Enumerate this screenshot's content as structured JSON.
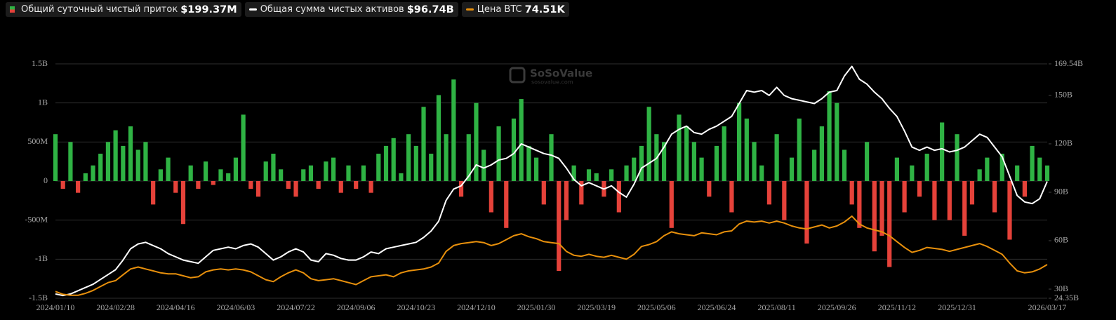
{
  "chart_data": {
    "type": "bar-line",
    "watermark": {
      "name": "SoSoValue",
      "url": "sosovalue.com"
    },
    "categories": [
      "2024/01/10",
      null,
      null,
      null,
      null,
      null,
      null,
      null,
      "2024/02/28",
      null,
      null,
      null,
      null,
      null,
      null,
      null,
      "2024/04/16",
      null,
      null,
      null,
      null,
      null,
      null,
      null,
      "2024/06/03",
      null,
      null,
      null,
      null,
      null,
      null,
      null,
      "2024/07/22",
      null,
      null,
      null,
      null,
      null,
      null,
      null,
      "2024/09/06",
      null,
      null,
      null,
      null,
      null,
      null,
      null,
      "2024/10/23",
      null,
      null,
      null,
      null,
      null,
      null,
      null,
      "2024/12/10",
      null,
      null,
      null,
      null,
      null,
      null,
      null,
      "2025/01/30",
      null,
      null,
      null,
      null,
      null,
      null,
      null,
      "2025/03/19",
      null,
      null,
      null,
      null,
      null,
      null,
      null,
      "2025/05/06",
      null,
      null,
      null,
      null,
      null,
      null,
      null,
      "2025/06/24",
      null,
      null,
      null,
      null,
      null,
      null,
      null,
      "2025/08/11",
      null,
      null,
      null,
      null,
      null,
      null,
      null,
      "2025/09/26",
      null,
      null,
      null,
      null,
      null,
      null,
      null,
      "2025/11/12",
      null,
      null,
      null,
      null,
      null,
      null,
      null,
      "2025/12/31",
      null,
      null,
      null,
      null,
      null,
      null,
      null,
      null,
      null,
      null,
      null,
      "2026/03/17"
    ],
    "ylim": [
      -1500,
      1500
    ],
    "yticks": [
      {
        "value": -1500,
        "label": "-1.5B"
      },
      {
        "value": -1000,
        "label": "-1B"
      },
      {
        "value": -500,
        "label": "-500M"
      },
      0,
      {
        "value": 500,
        "label": "500M"
      },
      {
        "value": 1000,
        "label": "1B"
      },
      {
        "value": 1500,
        "label": "1.5B"
      }
    ],
    "y2lim": [
      24.35,
      169.54
    ],
    "y2ticks": [
      {
        "value": 24.35,
        "label": "24.35B"
      },
      {
        "value": 30,
        "label": "30B"
      },
      {
        "value": 60,
        "label": "60B"
      },
      {
        "value": 90,
        "label": "90B"
      },
      {
        "value": 120,
        "label": "120B"
      },
      {
        "value": 150,
        "label": "150B"
      },
      {
        "value": 169.54,
        "label": "169.54B"
      }
    ],
    "y3lim": [
      40,
      280
    ],
    "grid": true,
    "series": [
      {
        "name": "Общий суточный чистый приток",
        "latest": "$199.37M",
        "type": "bar",
        "color": "#2fb344",
        "negative_color": "#e5423a",
        "values": [
          600,
          -100,
          500,
          -150,
          100,
          200,
          350,
          500,
          650,
          450,
          700,
          400,
          500,
          -300,
          150,
          300,
          -150,
          -550,
          200,
          -100,
          250,
          -50,
          150,
          100,
          300,
          850,
          -100,
          -200,
          250,
          350,
          150,
          -100,
          -200,
          150,
          200,
          -100,
          250,
          300,
          -150,
          200,
          -100,
          200,
          -150,
          350,
          450,
          550,
          100,
          600,
          450,
          950,
          350,
          1100,
          600,
          1300,
          -200,
          600,
          1000,
          400,
          -400,
          700,
          -600,
          800,
          1050,
          450,
          300,
          -300,
          600,
          -1150,
          -500,
          200,
          -300,
          150,
          100,
          -200,
          150,
          -400,
          200,
          300,
          450,
          950,
          600,
          500,
          -600,
          850,
          700,
          500,
          300,
          -200,
          450,
          700,
          -400,
          1000,
          800,
          500,
          200,
          -300,
          600,
          -500,
          300,
          800,
          -800,
          400,
          700,
          1150,
          1000,
          400,
          -300,
          -600,
          500,
          -900,
          -700,
          -1100,
          300,
          -400,
          200,
          -200,
          350,
          -500,
          750,
          -500,
          600,
          -700,
          -300,
          150,
          300,
          -400,
          350,
          -750,
          200,
          -200,
          450,
          300,
          199.37
        ]
      },
      {
        "name": "Общая сумма чистых активов",
        "latest": "$96.74B",
        "type": "line",
        "axis": "y2",
        "color": "#ffffff",
        "values": [
          27,
          26,
          27,
          29,
          31,
          33,
          36,
          39,
          42,
          48,
          55,
          58,
          59,
          57,
          55,
          52,
          50,
          48,
          47,
          46,
          50,
          54,
          55,
          56,
          55,
          57,
          58,
          56,
          52,
          48,
          50,
          53,
          55,
          53,
          48,
          47,
          52,
          51,
          49,
          48,
          48,
          50,
          53,
          52,
          55,
          56,
          57,
          58,
          59,
          62,
          66,
          72,
          85,
          92,
          94,
          100,
          107,
          105,
          107,
          110,
          111,
          114,
          120,
          118,
          116,
          114,
          113,
          111,
          105,
          98,
          94,
          96,
          94,
          92,
          94,
          90,
          87,
          95,
          105,
          108,
          111,
          118,
          126,
          129,
          131,
          127,
          126,
          129,
          131,
          134,
          137,
          145,
          153,
          152,
          153,
          150,
          155,
          150,
          148,
          147,
          146,
          145,
          148,
          152,
          153,
          162,
          168,
          160,
          157,
          152,
          148,
          142,
          137,
          128,
          118,
          116,
          118,
          116,
          117,
          115,
          116,
          118,
          122,
          126,
          124,
          118,
          112,
          100,
          88,
          84,
          83,
          86,
          96.74
        ]
      },
      {
        "name": "Цена BTC",
        "latest": "74.51K",
        "type": "line",
        "axis": "y3",
        "color": "#e8900c",
        "values": [
          47,
          44,
          43,
          43,
          45,
          48,
          52,
          56,
          58,
          64,
          70,
          72,
          70,
          68,
          66,
          65,
          65,
          63,
          61,
          62,
          67,
          69,
          70,
          69,
          70,
          69,
          67,
          63,
          59,
          57,
          62,
          66,
          69,
          66,
          60,
          58,
          59,
          60,
          58,
          56,
          54,
          58,
          62,
          63,
          64,
          62,
          66,
          68,
          69,
          70,
          72,
          76,
          88,
          94,
          96,
          97,
          98,
          97,
          94,
          96,
          100,
          104,
          106,
          103,
          101,
          98,
          97,
          96,
          88,
          84,
          83,
          85,
          83,
          82,
          84,
          82,
          80,
          85,
          93,
          95,
          98,
          104,
          108,
          106,
          105,
          104,
          107,
          106,
          105,
          108,
          109,
          116,
          119,
          118,
          119,
          117,
          119,
          117,
          114,
          112,
          111,
          113,
          115,
          112,
          114,
          118,
          124,
          116,
          112,
          110,
          108,
          104,
          98,
          92,
          87,
          89,
          92,
          91,
          90,
          88,
          90,
          92,
          94,
          96,
          93,
          89,
          85,
          76,
          68,
          66,
          67,
          70,
          74.51
        ]
      }
    ]
  }
}
